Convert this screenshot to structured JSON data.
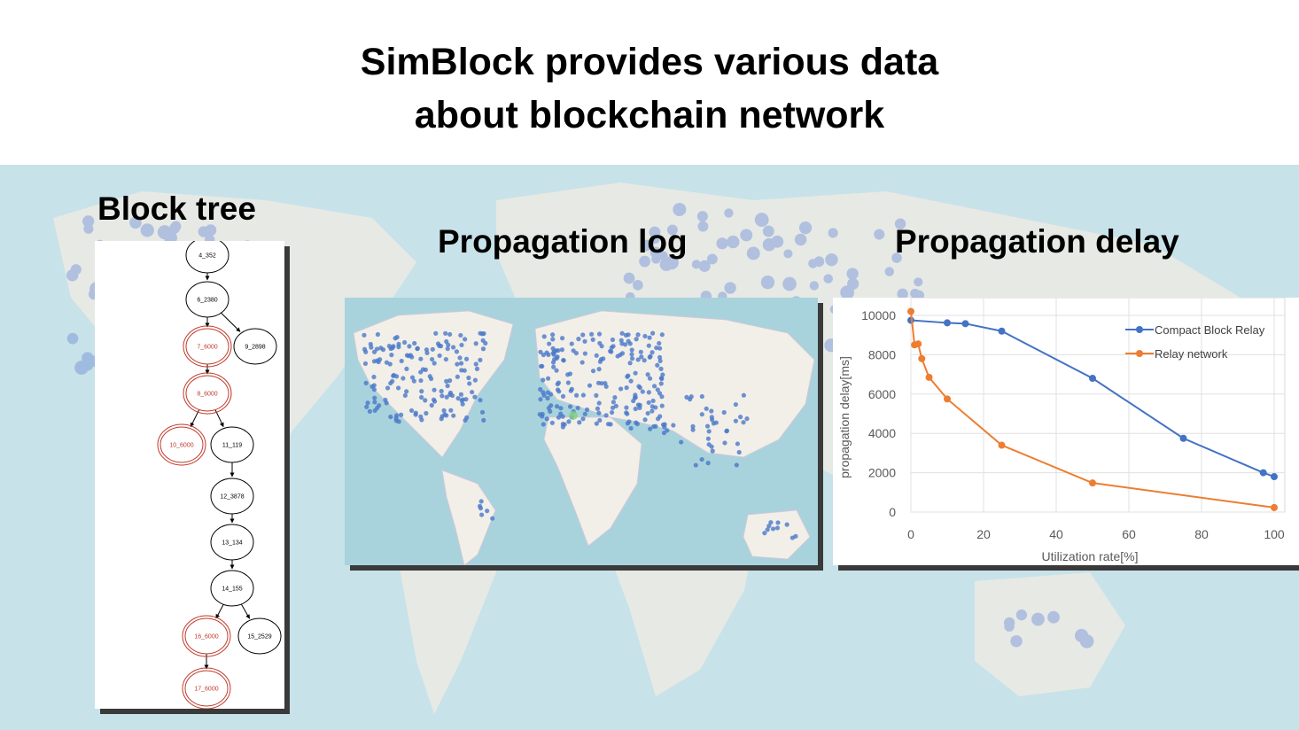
{
  "title": {
    "line1": "SimBlock provides various data",
    "line2": "about blockchain network"
  },
  "sections": {
    "block_tree": "Block tree",
    "propagation_log": "Propagation log",
    "propagation_delay": "Propagation delay"
  },
  "block_tree": {
    "nodes": [
      {
        "id": "4_352",
        "orphan": false
      },
      {
        "id": "6_2380",
        "orphan": false
      },
      {
        "id": "7_6000",
        "orphan": true
      },
      {
        "id": "9_2898",
        "orphan": false
      },
      {
        "id": "8_6000",
        "orphan": true
      },
      {
        "id": "10_6000",
        "orphan": true
      },
      {
        "id": "11_119",
        "orphan": false
      },
      {
        "id": "12_3878",
        "orphan": false
      },
      {
        "id": "13_134",
        "orphan": false
      },
      {
        "id": "14_155",
        "orphan": false
      },
      {
        "id": "16_6000",
        "orphan": true
      },
      {
        "id": "15_2529",
        "orphan": false
      },
      {
        "id": "17_6000",
        "orphan": true
      }
    ],
    "edges": [
      [
        "4_352",
        "6_2380"
      ],
      [
        "6_2380",
        "7_6000"
      ],
      [
        "6_2380",
        "9_2898"
      ],
      [
        "7_6000",
        "8_6000"
      ],
      [
        "8_6000",
        "10_6000"
      ],
      [
        "8_6000",
        "11_119"
      ],
      [
        "11_119",
        "12_3878"
      ],
      [
        "12_3878",
        "13_134"
      ],
      [
        "13_134",
        "14_155"
      ],
      [
        "14_155",
        "16_6000"
      ],
      [
        "14_155",
        "15_2529"
      ],
      [
        "16_6000",
        "17_6000"
      ]
    ]
  },
  "colors": {
    "orphan": "#c0392b",
    "normal": "#000000",
    "compact_block_relay": "#4472c4",
    "relay_network": "#ed7d31",
    "map_water": "#a9d3dc",
    "map_land": "#f2efe9",
    "map_dot": "#4a78c8"
  },
  "chart_data": {
    "type": "line",
    "xlabel": "Utilization rate[%]",
    "ylabel": "propagation delay[ms]",
    "xlim": [
      0,
      100
    ],
    "ylim": [
      0,
      10000
    ],
    "xticks": [
      0,
      20,
      40,
      60,
      80,
      100
    ],
    "yticks": [
      0,
      2000,
      4000,
      6000,
      8000,
      10000
    ],
    "xtick_labels": [
      "0",
      "20",
      "40",
      "60",
      "80",
      "100"
    ],
    "ytick_labels": [
      "0",
      "2000",
      "4000",
      "6000",
      "8000",
      "10000"
    ],
    "legend_position": "top-right",
    "grid": true,
    "series": [
      {
        "name": "Compact Block Relay",
        "x": [
          0,
          10,
          15,
          25,
          50,
          75,
          97,
          100
        ],
        "y": [
          9750,
          9620,
          9580,
          9200,
          6800,
          3750,
          2000,
          1800
        ]
      },
      {
        "name": "Relay network",
        "x": [
          0,
          1,
          2,
          3,
          5,
          10,
          25,
          50,
          100
        ],
        "y": [
          10200,
          8500,
          8550,
          7800,
          6850,
          5750,
          3400,
          1480,
          230
        ]
      }
    ]
  }
}
